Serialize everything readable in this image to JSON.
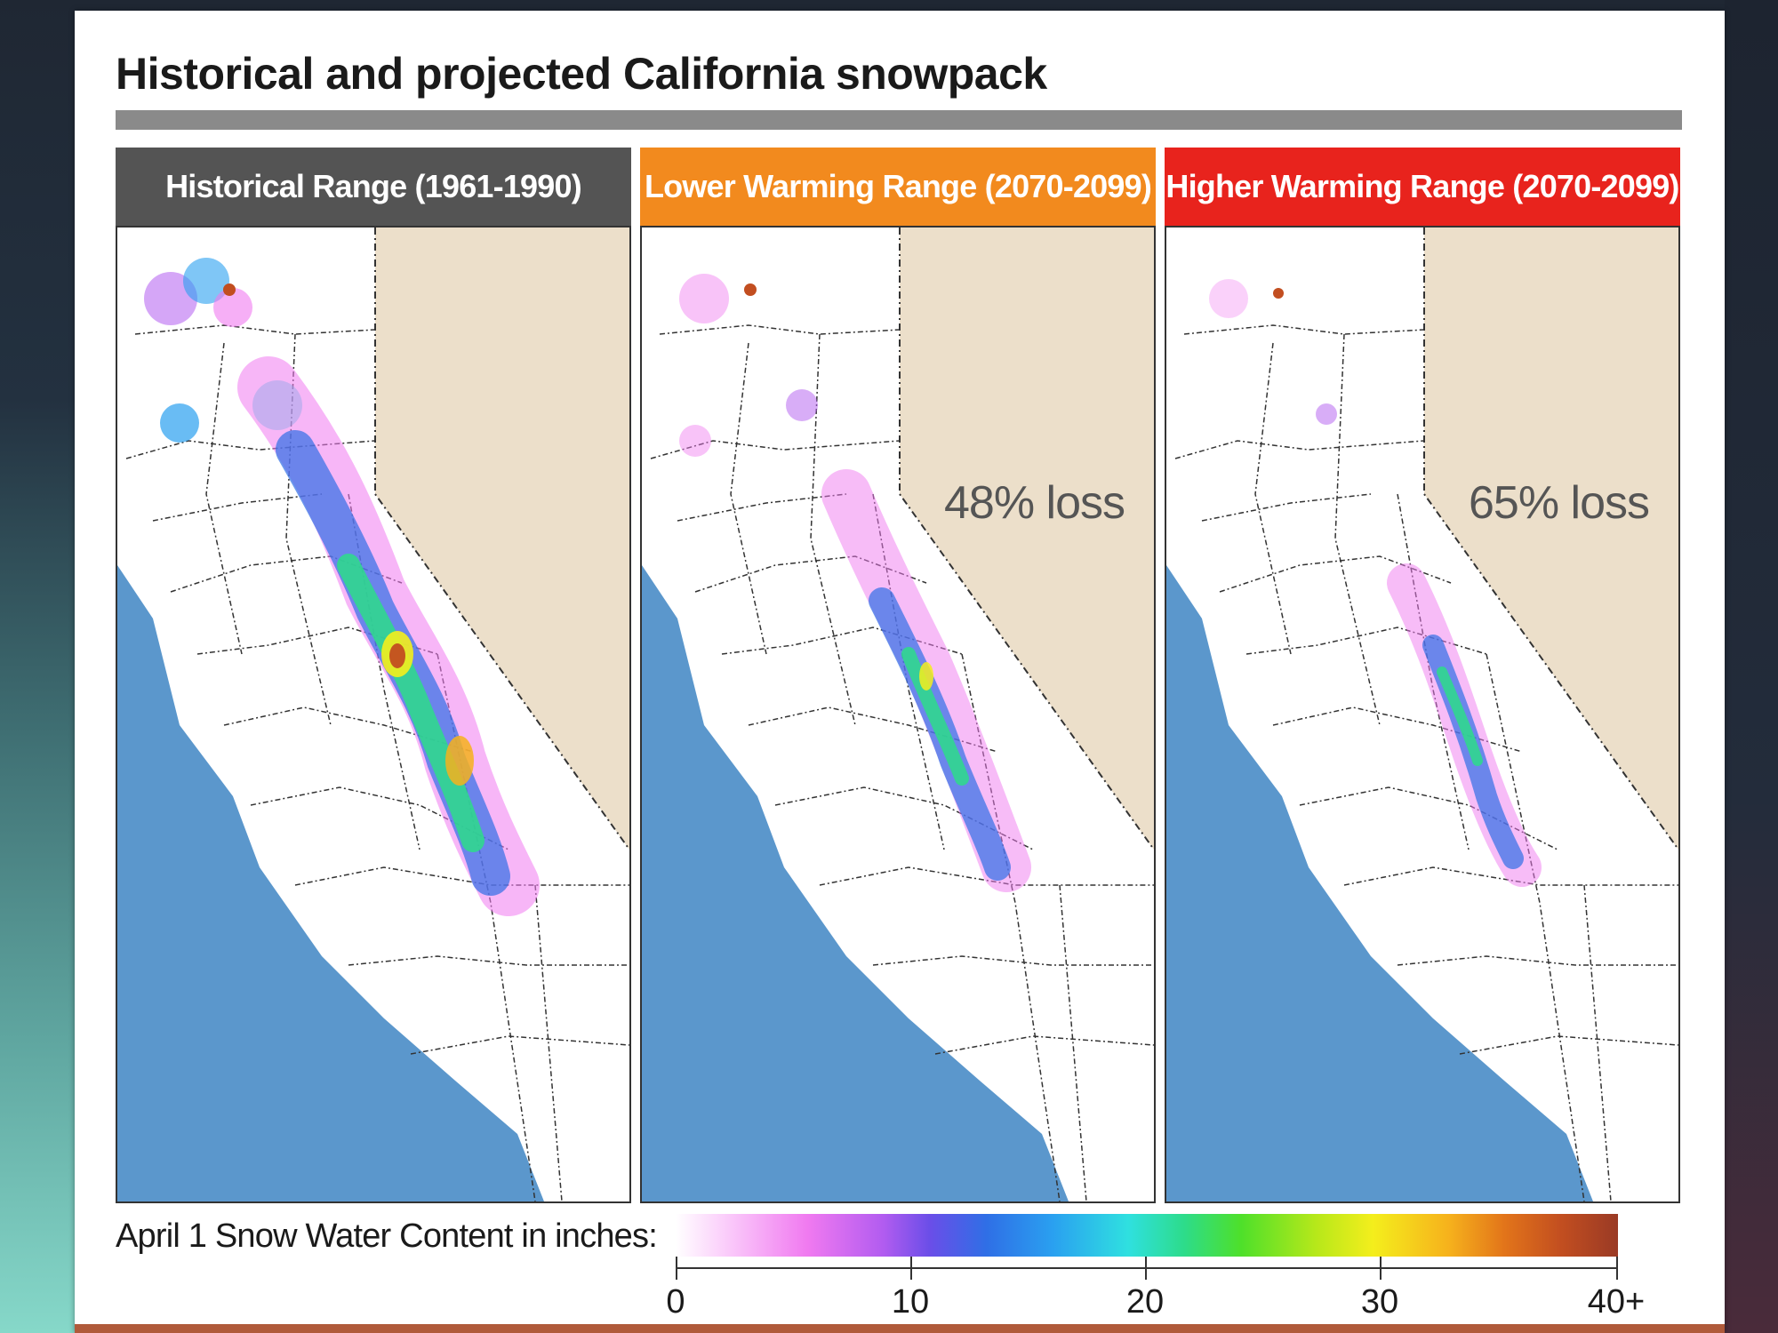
{
  "figure": {
    "title": "Historical and projected California snowpack",
    "panels": [
      {
        "header": "Historical Range (1961-1990)",
        "header_color": "#545454",
        "loss": ""
      },
      {
        "header": "Lower Warming Range (2070-2099)",
        "header_color": "#f28a1e",
        "loss": "48% loss"
      },
      {
        "header": "Higher Warming Range (2070-2099)",
        "header_color": "#e8231d",
        "loss": "65% loss"
      }
    ],
    "legend": {
      "label": "April 1 Snow Water Content in inches:",
      "ticks": [
        "0",
        "10",
        "20",
        "30",
        "40+"
      ]
    },
    "colors": {
      "ocean": "#5b97cc",
      "nevada": "#ecdfca",
      "land": "#ffffff"
    }
  }
}
